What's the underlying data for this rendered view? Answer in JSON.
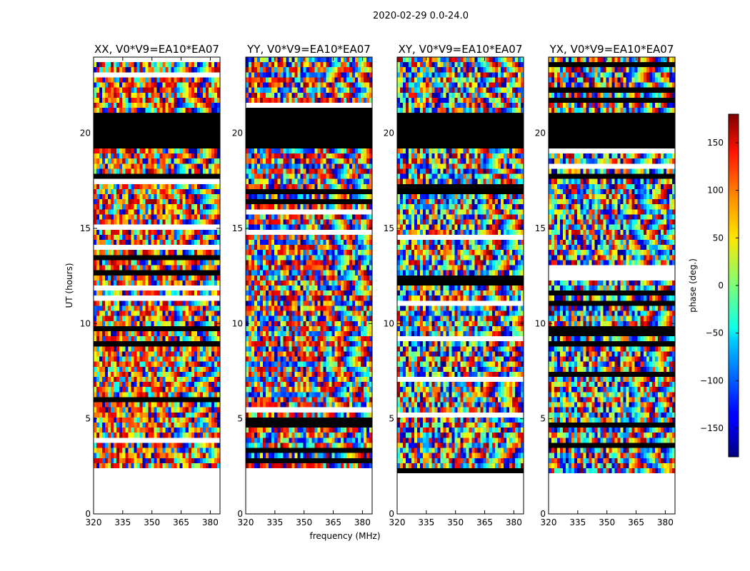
{
  "chart_data": {
    "type": "heatmap",
    "suptitle": "2020-02-29 0.0-24.0",
    "xlabel": "frequency (MHz)",
    "ylabel": "UT (hours)",
    "xlim": [
      320,
      385
    ],
    "ylim": [
      0,
      24
    ],
    "x_ticks": [
      "320",
      "335",
      "350",
      "365",
      "380"
    ],
    "y_ticks": [
      "0",
      "5",
      "10",
      "15",
      "20"
    ],
    "panels": [
      {
        "title": "XX, V0*V9=EA10*EA07",
        "tint": "warm"
      },
      {
        "title": "YY, V0*V9=EA10*EA07",
        "tint": "mixed"
      },
      {
        "title": "XY, V0*V9=EA10*EA07",
        "tint": "noise"
      },
      {
        "title": "YX, V0*V9=EA10*EA07",
        "tint": "noise"
      }
    ],
    "colorbar": {
      "label": "phase (deg.)",
      "range": [
        -180,
        180
      ],
      "ticks": [
        "150",
        "100",
        "50",
        "0",
        "−50",
        "−100",
        "−150"
      ],
      "tick_values": [
        150,
        100,
        50,
        0,
        -50,
        -100,
        -150
      ]
    },
    "empty_ut_range": [
      0,
      2.2
    ],
    "flagged_ut_range": [
      19.3,
      21.0
    ]
  },
  "colors": {
    "flagged": "#000000",
    "empty": "#ffffff",
    "axes": "#000000"
  }
}
